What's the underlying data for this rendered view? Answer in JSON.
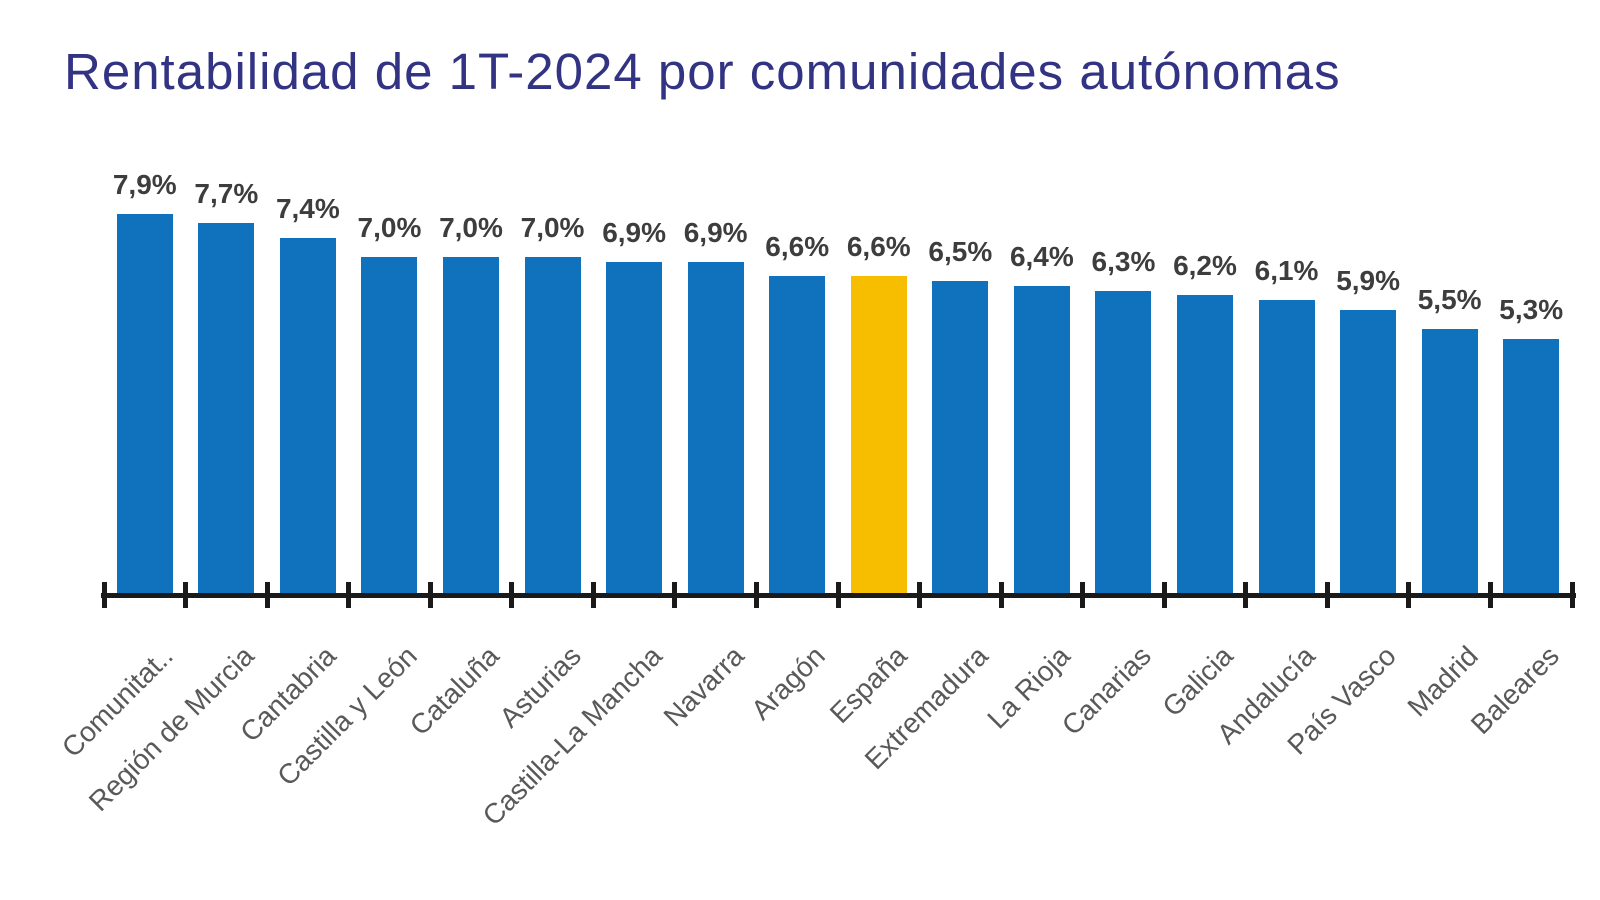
{
  "chart_data": {
    "type": "bar",
    "title": "Rentabilidad de 1T-2024 por comunidades autónomas",
    "categories": [
      "Comunitat..",
      "Región de Murcia",
      "Cantabria",
      "Castilla y León",
      "Cataluña",
      "Asturias",
      "Castilla-La Mancha",
      "Navarra",
      "Aragón",
      "España",
      "Extremadura",
      "La Rioja",
      "Canarias",
      "Galicia",
      "Andalucía",
      "País Vasco",
      "Madrid",
      "Baleares"
    ],
    "values": [
      7.9,
      7.7,
      7.4,
      7.0,
      7.0,
      7.0,
      6.9,
      6.9,
      6.6,
      6.6,
      6.5,
      6.4,
      6.3,
      6.2,
      6.1,
      5.9,
      5.5,
      5.3
    ],
    "value_labels": [
      "7,9%",
      "7,7%",
      "7,4%",
      "7,0%",
      "7,0%",
      "7,0%",
      "6,9%",
      "6,9%",
      "6,6%",
      "6,6%",
      "6,5%",
      "6,4%",
      "6,3%",
      "6,2%",
      "6,1%",
      "5,9%",
      "5,5%",
      "5,3%"
    ],
    "highlight_category": "España",
    "xlabel": "",
    "ylabel": "",
    "ylim": [
      0,
      8.5
    ],
    "grid": false,
    "legend": false,
    "x_tick_rotation": 45,
    "colors": {
      "bar": "#1072BC",
      "highlight_bar": "#F7BE00",
      "title": "#333384",
      "value_label": "#3D3D3D",
      "category_label": "#595959",
      "axis": "#1A1A1A"
    }
  }
}
